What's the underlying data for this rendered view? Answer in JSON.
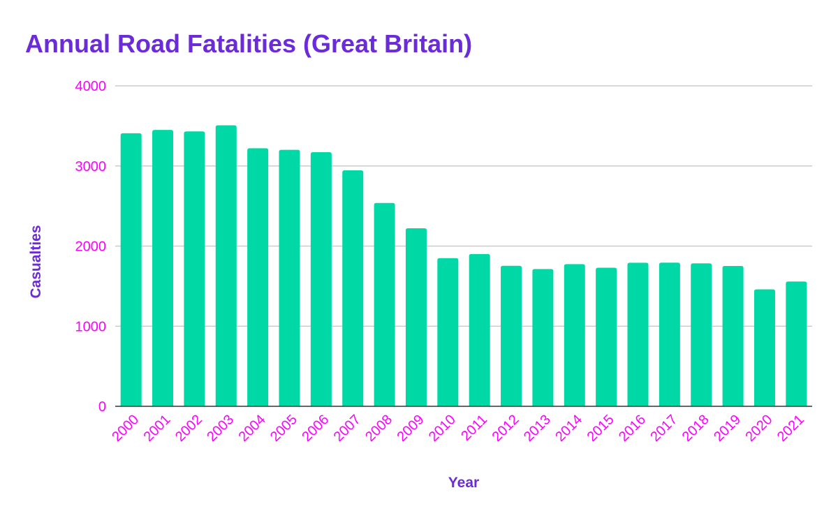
{
  "chart_data": {
    "type": "bar",
    "title": "Annual Road Fatalities (Great Britain)",
    "xlabel": "Year",
    "ylabel": "Casualties",
    "ylim": [
      0,
      4000
    ],
    "yticks": [
      "0",
      "1000",
      "2000",
      "3000",
      "4000"
    ],
    "grid": true,
    "categories": [
      "2000",
      "2001",
      "2002",
      "2003",
      "2004",
      "2005",
      "2006",
      "2007",
      "2008",
      "2009",
      "2010",
      "2011",
      "2012",
      "2013",
      "2014",
      "2015",
      "2016",
      "2017",
      "2018",
      "2019",
      "2020",
      "2021"
    ],
    "values": [
      3409,
      3450,
      3431,
      3508,
      3221,
      3201,
      3172,
      2946,
      2538,
      2222,
      1850,
      1901,
      1754,
      1713,
      1775,
      1730,
      1792,
      1793,
      1784,
      1752,
      1460,
      1558
    ],
    "colors": {
      "bar": "#00d9a6",
      "title": "#6c2bd9",
      "ticks": "#ff00ff",
      "grid": "#cccccc",
      "axis": "#333333"
    }
  }
}
